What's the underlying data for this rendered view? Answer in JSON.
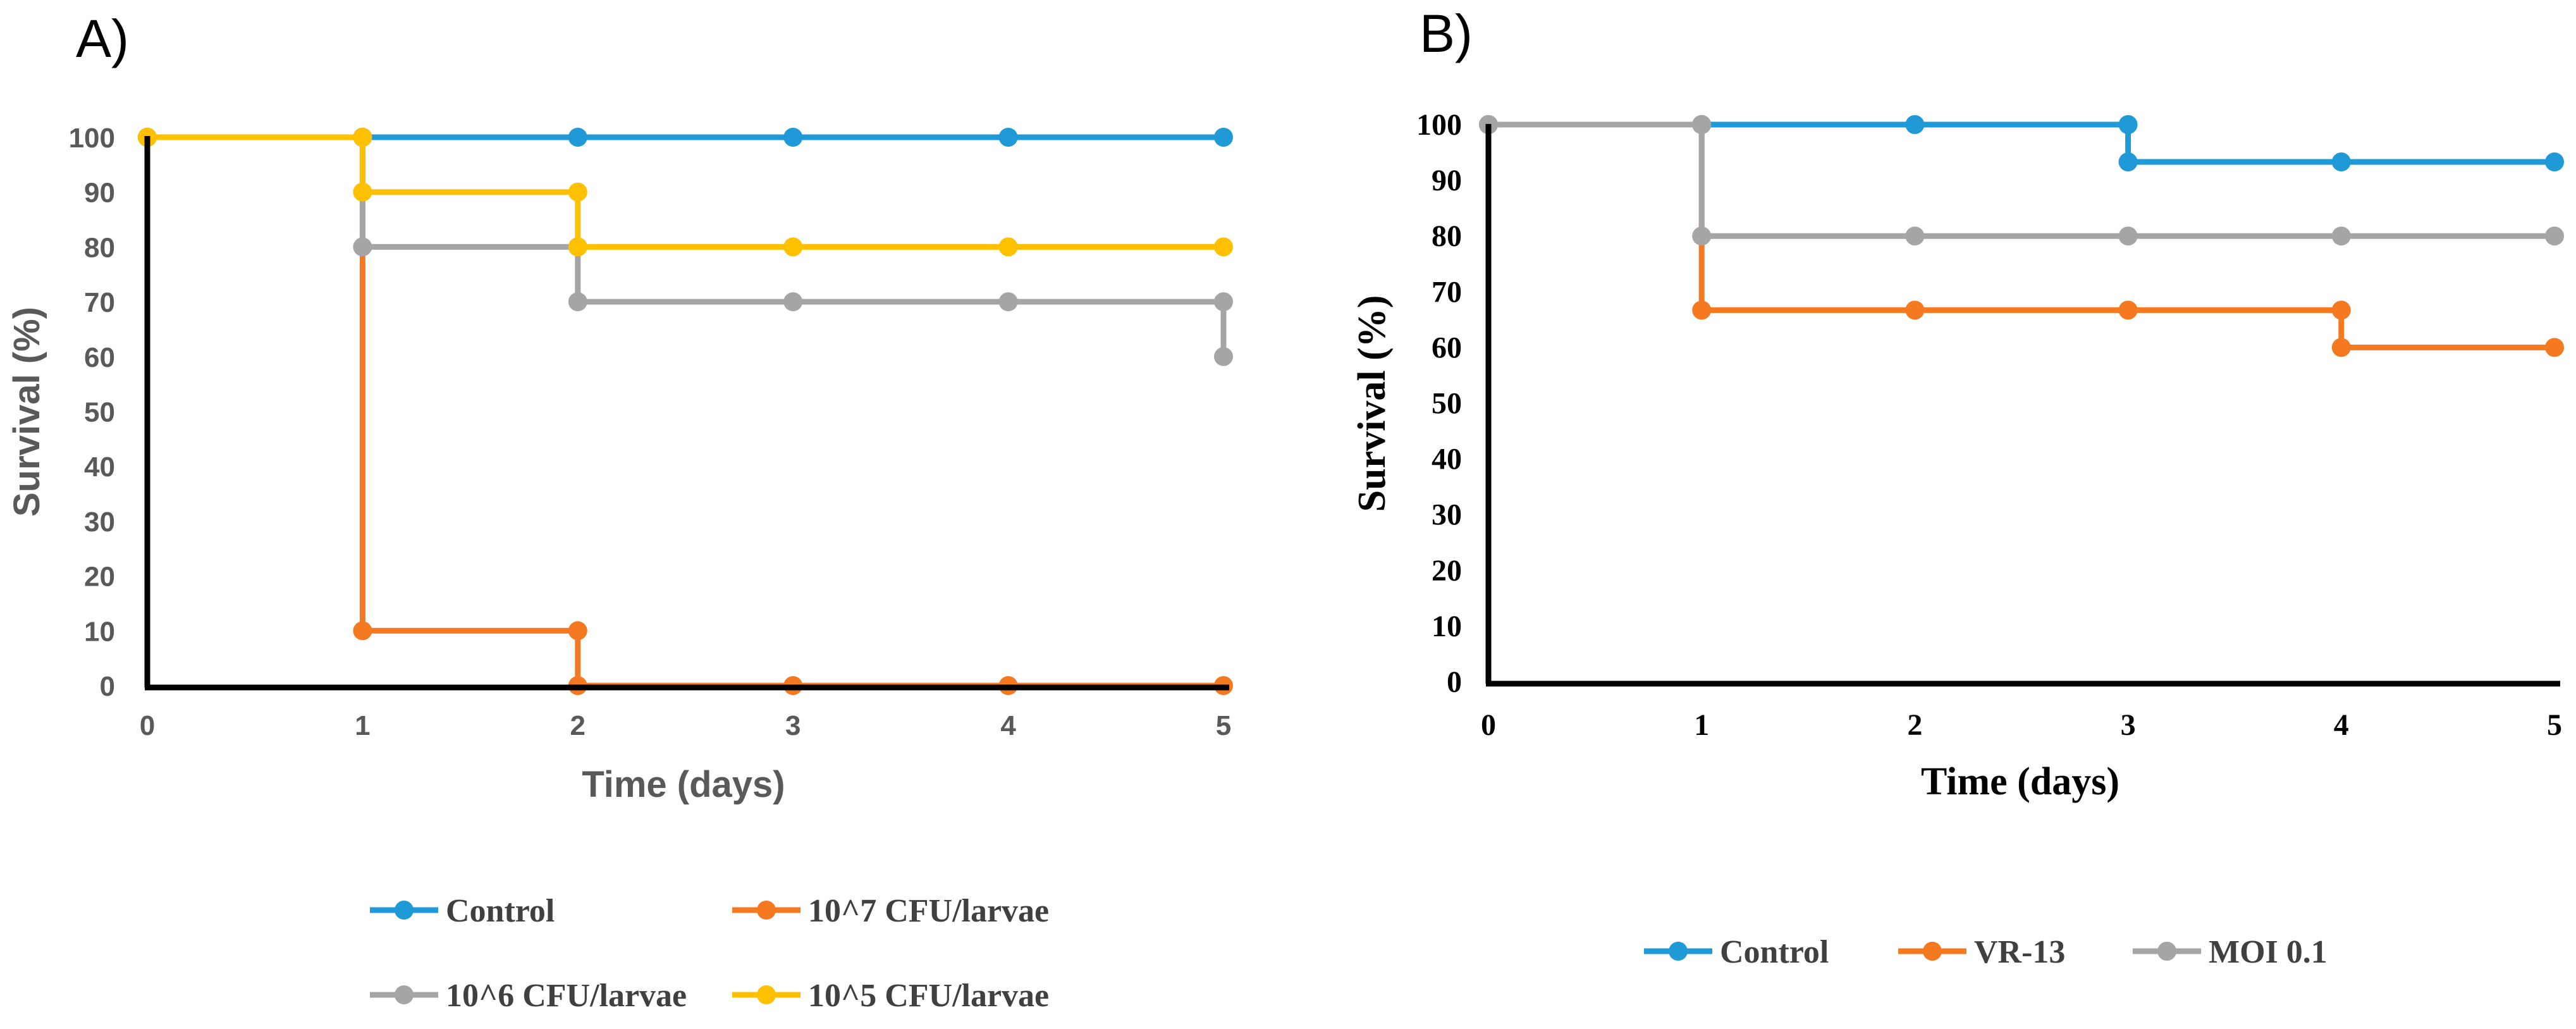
{
  "chart_data": [
    {
      "type": "line",
      "step": true,
      "panel_label": "A)",
      "xlabel": "Time (days)",
      "ylabel": "Survival (%)",
      "x_ticks": [
        "0",
        "1",
        "2",
        "3",
        "4",
        "5"
      ],
      "y_ticks": [
        "0",
        "10",
        "20",
        "30",
        "40",
        "50",
        "60",
        "70",
        "80",
        "90",
        "100"
      ],
      "xlim": [
        0,
        5
      ],
      "ylim": [
        0,
        100
      ],
      "grid": false,
      "legend_position": "bottom",
      "series": [
        {
          "name": "Control",
          "color": "#1f9ad6",
          "x": [
            0,
            1,
            2,
            3,
            4,
            5
          ],
          "y": [
            100,
            100,
            100,
            100,
            100,
            100
          ]
        },
        {
          "name": "10^7 CFU/larvae",
          "color": "#f47920",
          "x": [
            0,
            1,
            1,
            2,
            2,
            3,
            4,
            5
          ],
          "y": [
            100,
            100,
            10,
            10,
            0,
            0,
            0,
            0
          ]
        },
        {
          "name": "10^6 CFU/larvae",
          "color": "#a5a5a5",
          "x": [
            0,
            1,
            1,
            2,
            2,
            3,
            4,
            5,
            5
          ],
          "y": [
            100,
            100,
            80,
            80,
            70,
            70,
            70,
            70,
            60
          ]
        },
        {
          "name": "10^5 CFU/larvae",
          "color": "#ffc000",
          "x": [
            0,
            1,
            1,
            2,
            2,
            3,
            4,
            5
          ],
          "y": [
            100,
            100,
            90,
            90,
            80,
            80,
            80,
            80
          ]
        }
      ]
    },
    {
      "type": "line",
      "step": true,
      "panel_label": "B)",
      "xlabel": "Time (days)",
      "ylabel": "Survival (%)",
      "x_ticks": [
        "0",
        "1",
        "2",
        "3",
        "4",
        "5"
      ],
      "y_ticks": [
        "0",
        "10",
        "20",
        "30",
        "40",
        "50",
        "60",
        "70",
        "80",
        "90",
        "100"
      ],
      "xlim": [
        0,
        5
      ],
      "ylim": [
        0,
        100
      ],
      "grid": false,
      "legend_position": "bottom",
      "series": [
        {
          "name": "Control",
          "color": "#1f9ad6",
          "x": [
            0,
            1,
            2,
            3,
            3,
            4,
            5
          ],
          "y": [
            100,
            100,
            100,
            100,
            93.3,
            93.3,
            93.3
          ]
        },
        {
          "name": "VR-13",
          "color": "#f47920",
          "x": [
            0,
            1,
            1,
            2,
            3,
            4,
            4,
            5
          ],
          "y": [
            100,
            100,
            66.7,
            66.7,
            66.7,
            66.7,
            60,
            60
          ]
        },
        {
          "name": "MOI 0.1",
          "color": "#a5a5a5",
          "x": [
            0,
            1,
            1,
            2,
            3,
            4,
            5
          ],
          "y": [
            100,
            100,
            80,
            80,
            80,
            80,
            80
          ]
        }
      ]
    }
  ]
}
